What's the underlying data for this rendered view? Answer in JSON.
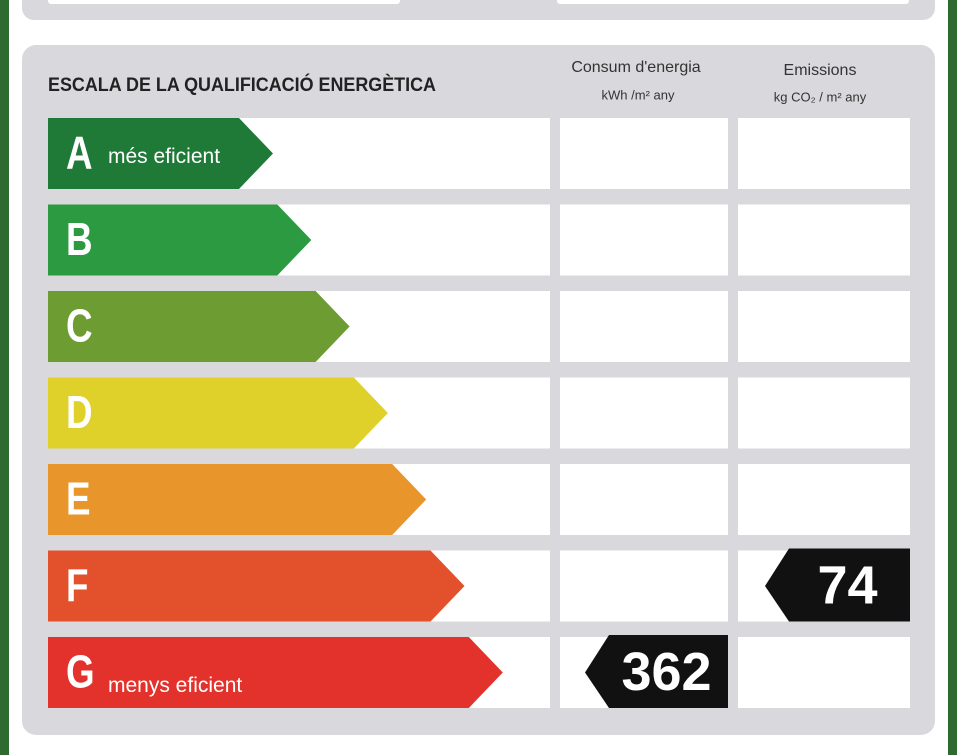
{
  "header": {
    "title": "ESCALA DE LA QUALIFICACIÓ ENERGÈTICA"
  },
  "columns": [
    {
      "title": "Consum d'energia",
      "unit": "kWh /m² any"
    },
    {
      "title": "Emissions",
      "unit": "kg CO₂ / m² any"
    }
  ],
  "rows": [
    {
      "letter": "A",
      "note": "més eficient",
      "color": "#1f7a38"
    },
    {
      "letter": "B",
      "color": "#2b9a40"
    },
    {
      "letter": "C",
      "color": "#6c9c32"
    },
    {
      "letter": "D",
      "color": "#e0d12a"
    },
    {
      "letter": "E",
      "color": "#e8952c"
    },
    {
      "letter": "F",
      "color": "#e2512c",
      "emissions": 74
    },
    {
      "letter": "G",
      "note": "menys eficient",
      "color": "#e2322b",
      "energy": 362
    }
  ]
}
